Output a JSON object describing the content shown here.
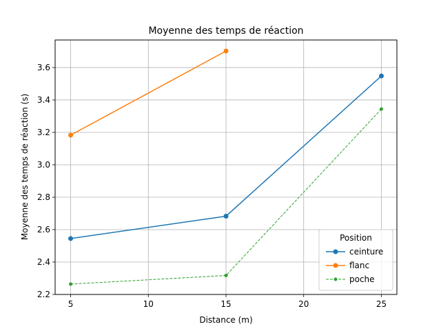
{
  "chart_data": {
    "type": "line",
    "title": "Moyenne des temps de réaction",
    "xlabel": "Distance (m)",
    "ylabel": "Moyenne des temps de réaction (s)",
    "xlim": [
      4,
      26
    ],
    "ylim": [
      2.2,
      3.77
    ],
    "xticks": [
      5,
      10,
      15,
      20,
      25
    ],
    "yticks": [
      2.2,
      2.4,
      2.6,
      2.8,
      3.0,
      3.2,
      3.4,
      3.6
    ],
    "grid": true,
    "legend": {
      "title": "Position",
      "placement": "lower-right"
    },
    "series": [
      {
        "name": "ceinture",
        "color": "#1f77b4",
        "style": "solid",
        "marker": "circle",
        "x": [
          5,
          15,
          25
        ],
        "y": [
          2.545,
          2.683,
          3.548
        ]
      },
      {
        "name": "flanc",
        "color": "#ff7f0e",
        "style": "solid",
        "marker": "circle",
        "x": [
          5,
          15
        ],
        "y": [
          3.183,
          3.702
        ]
      },
      {
        "name": "poche",
        "color": "#2ca02c",
        "style": "dashed",
        "marker": "small-circle",
        "x": [
          5,
          15,
          25
        ],
        "y": [
          2.264,
          2.317,
          3.344
        ]
      }
    ]
  }
}
